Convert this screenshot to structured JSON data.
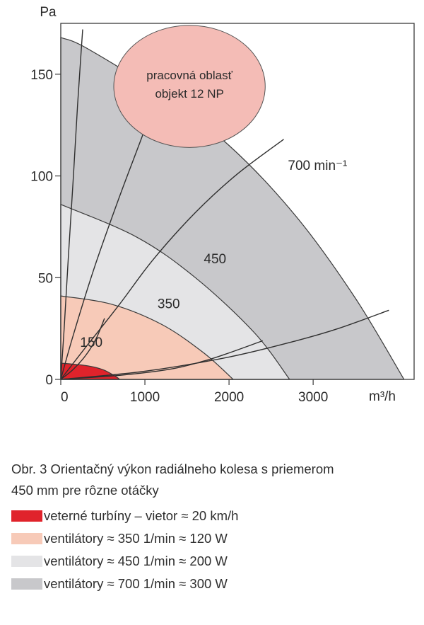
{
  "chart_data": {
    "type": "area",
    "x_unit_label": "m³/h",
    "y_unit_label": "Pa",
    "xlim": [
      0,
      4200
    ],
    "ylim": [
      0,
      175
    ],
    "x_ticks": [
      0,
      1000,
      2000,
      3000
    ],
    "x_tick_labels": [
      "0",
      "1000",
      "2000",
      "3000"
    ],
    "y_ticks": [
      0,
      50,
      100,
      150
    ],
    "y_tick_labels": [
      "0",
      "50",
      "100",
      "150"
    ],
    "grid": false,
    "bands": [
      {
        "name": "veterné turbíny – vietor ≈ 20 km/h",
        "color": "#e0232b",
        "points": [
          [
            0,
            8
          ],
          [
            300,
            6.8
          ],
          [
            500,
            4.8
          ],
          [
            650,
            1.5
          ],
          [
            700,
            0
          ]
        ]
      },
      {
        "name": "ventilátory ≈ 350 1/min ≈ 120 W",
        "color": "#f7cab8",
        "points": [
          [
            0,
            41
          ],
          [
            600,
            37
          ],
          [
            1200,
            27
          ],
          [
            1700,
            13
          ],
          [
            2050,
            0
          ]
        ]
      },
      {
        "name": "ventilátory ≈ 450 1/min ≈ 200 W",
        "color": "#e4e4e6",
        "points": [
          [
            0,
            86
          ],
          [
            900,
            70
          ],
          [
            1600,
            50
          ],
          [
            2300,
            23
          ],
          [
            2720,
            0
          ]
        ]
      },
      {
        "name": "ventilátory ≈ 700 1/min ≈ 300 W",
        "color": "#c8c8cb",
        "points": [
          [
            0,
            168
          ],
          [
            300,
            163
          ],
          [
            1200,
            140
          ],
          [
            2000,
            115
          ],
          [
            2800,
            80
          ],
          [
            3500,
            40
          ],
          [
            4080,
            0
          ]
        ]
      }
    ],
    "speed_curves": [
      {
        "label": "150",
        "points": [
          [
            0,
            0
          ],
          [
            150,
            5
          ],
          [
            300,
            12
          ],
          [
            420,
            20
          ],
          [
            520,
            30
          ]
        ]
      },
      {
        "label": "350",
        "points": [
          [
            0,
            0
          ],
          [
            700,
            2
          ],
          [
            1300,
            5
          ],
          [
            1700,
            9
          ],
          [
            2000,
            13
          ],
          [
            2400,
            19
          ]
        ]
      },
      {
        "label": "450",
        "points": [
          [
            0,
            0
          ],
          [
            1000,
            4
          ],
          [
            2000,
            11
          ],
          [
            2800,
            19
          ],
          [
            3300,
            25
          ],
          [
            3900,
            34
          ]
        ]
      },
      {
        "label": "700 min⁻¹",
        "points": [
          [
            0,
            0
          ],
          [
            300,
            16
          ],
          [
            700,
            37
          ],
          [
            1100,
            59
          ],
          [
            1600,
            82
          ],
          [
            2100,
            101
          ],
          [
            2650,
            118
          ]
        ]
      },
      {
        "label": "",
        "points": [
          [
            0,
            0
          ],
          [
            150,
            22
          ],
          [
            400,
            55
          ],
          [
            700,
            90
          ],
          [
            1000,
            123
          ],
          [
            1250,
            152
          ],
          [
            1400,
            170
          ]
        ]
      },
      {
        "label": "",
        "points": [
          [
            0,
            0
          ],
          [
            40,
            25
          ],
          [
            90,
            60
          ],
          [
            150,
            100
          ],
          [
            200,
            135
          ],
          [
            240,
            160
          ],
          [
            260,
            172
          ]
        ]
      }
    ],
    "speed_curve_labels": [
      {
        "text": "150",
        "x": 230,
        "y": 16
      },
      {
        "text": "350",
        "x": 1150,
        "y": 35
      },
      {
        "text": "450",
        "x": 1700,
        "y": 57
      },
      {
        "text": "700 min⁻¹",
        "x": 2700,
        "y": 103
      }
    ],
    "annotation": {
      "lines": [
        "pracovná oblasť",
        "objekt 12 NP"
      ],
      "color": "#f4bcb6",
      "center_x": 1530,
      "center_y": 144,
      "radius_x": 900,
      "radius_y": 30
    }
  },
  "caption": {
    "line1": "Obr. 3  Orientačný výkon radiálneho kolesa s priemerom",
    "line2": "450 mm pre rôzne otáčky"
  },
  "legend": [
    {
      "color": "#e0232b",
      "label": "veterné turbíny – vietor ≈ 20 km/h"
    },
    {
      "color": "#f7cab8",
      "label": "ventilátory ≈ 350 1/min ≈ 120 W"
    },
    {
      "color": "#e4e4e6",
      "label": "ventilátory ≈ 450 1/min ≈ 200 W"
    },
    {
      "color": "#c8c8cb",
      "label": "ventilátory ≈ 700 1/min ≈ 300 W"
    }
  ]
}
